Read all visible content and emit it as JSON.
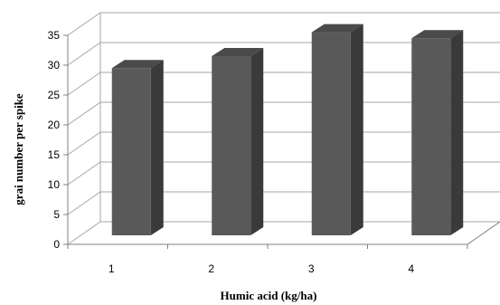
{
  "chart_data": {
    "type": "bar",
    "style": "3d-column",
    "categories": [
      "1",
      "2",
      "3",
      "4"
    ],
    "values": [
      28,
      30,
      34,
      33
    ],
    "xlabel": "Humic acid (kg/ha)",
    "ylabel": "grai number per spike",
    "ylim": [
      0,
      35
    ],
    "yticks": [
      0,
      5,
      10,
      15,
      20,
      25,
      30,
      35
    ],
    "grid": true,
    "legend": "none",
    "colors": {
      "bar_front": "#595959",
      "bar_side": "#3a3a3a",
      "bar_top": "#4a4a4a",
      "grid": "#a6a6a6"
    }
  }
}
